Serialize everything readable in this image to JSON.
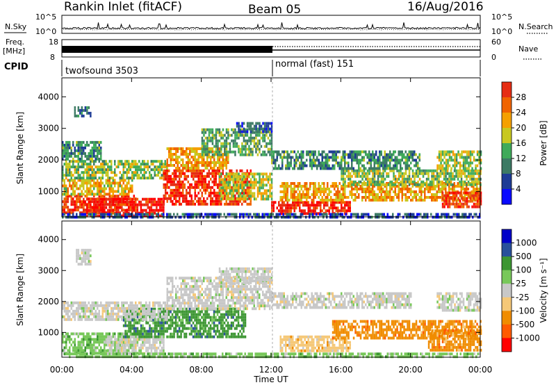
{
  "header": {
    "title": "Rankin Inlet (fitACF)",
    "beam": "Beam 05",
    "date": "16/Aug/2016"
  },
  "top_panels": {
    "nsky_label": "N.Sky",
    "nsky_ticks": [
      "10^5",
      "10^0"
    ],
    "nsearch_label": "N.Search",
    "nsearch_ticks": [
      "10^5",
      "10^0"
    ],
    "freq_label": "Freq.",
    "freq_unit": "[MHz]",
    "freq_ticks": [
      "18",
      "8"
    ],
    "nave_label": "Nave",
    "nave_ticks": [
      "60",
      "0"
    ],
    "cpid_label": "CPID",
    "cpid_segments": [
      {
        "name": "twofsound",
        "id": "3503",
        "start_hour": 0,
        "end_hour": 12
      },
      {
        "name": "normal (fast)",
        "id": "151",
        "start_hour": 12,
        "end_hour": 24
      }
    ]
  },
  "colors": {
    "power_scale": [
      "#0a0aff",
      "#1e3c96",
      "#3c7a64",
      "#3faa5a",
      "#c8c820",
      "#f5a000",
      "#f06400",
      "#e62d14",
      "#ff0000"
    ],
    "velocity_scale": [
      "#ff0000",
      "#ff5a00",
      "#f08c00",
      "#f5c878",
      "#c8c8c8",
      "#78c85a",
      "#3c9632",
      "#28509b",
      "#0000c8"
    ]
  },
  "chart_data": [
    {
      "type": "heatmap",
      "panel": "power",
      "xlabel": "Time UT",
      "ylabel": "Slant Range [km]",
      "xlim": [
        0,
        24
      ],
      "ylim": [
        200,
        4600
      ],
      "x_ticks": [
        "00:00",
        "04:00",
        "08:00",
        "12:00",
        "16:00",
        "20:00",
        "00:00"
      ],
      "y_ticks": [
        "1000",
        "2000",
        "3000",
        "4000"
      ],
      "colorbar_label": "Power [dB]",
      "colorbar_ticks": [
        "4",
        "8",
        "12",
        "16",
        "20",
        "24",
        "28"
      ],
      "colorbar_range": [
        0,
        32
      ],
      "regions": [
        {
          "x": [
            0.0,
            4.2
          ],
          "y": [
            300,
            900
          ],
          "value": 26
        },
        {
          "x": [
            1.2,
            5.8
          ],
          "y": [
            250,
            800
          ],
          "value": 29
        },
        {
          "x": [
            0.0,
            4.0
          ],
          "y": [
            900,
            1400
          ],
          "value": 18
        },
        {
          "x": [
            0.0,
            6.0
          ],
          "y": [
            1400,
            2000
          ],
          "value": 14
        },
        {
          "x": [
            0.0,
            2.2
          ],
          "y": [
            2000,
            2600
          ],
          "value": 10
        },
        {
          "x": [
            5.8,
            10.8
          ],
          "y": [
            600,
            1700
          ],
          "value": 27
        },
        {
          "x": [
            6.0,
            9.5
          ],
          "y": [
            1700,
            2400
          ],
          "value": 20
        },
        {
          "x": [
            8.0,
            12.0
          ],
          "y": [
            2200,
            3000
          ],
          "value": 12
        },
        {
          "x": [
            10.0,
            12.0
          ],
          "y": [
            2900,
            3200
          ],
          "value": 6
        },
        {
          "x": [
            9.0,
            12.0
          ],
          "y": [
            800,
            1600
          ],
          "value": 16
        },
        {
          "x": [
            12.0,
            16.5
          ],
          "y": [
            300,
            700
          ],
          "value": 28
        },
        {
          "x": [
            12.5,
            24.0
          ],
          "y": [
            700,
            1300
          ],
          "value": 20
        },
        {
          "x": [
            16.0,
            24.0
          ],
          "y": [
            1200,
            1700
          ],
          "value": 14
        },
        {
          "x": [
            12.0,
            20.5
          ],
          "y": [
            1700,
            2300
          ],
          "value": 10
        },
        {
          "x": [
            21.8,
            24.0
          ],
          "y": [
            500,
            1000
          ],
          "value": 26
        },
        {
          "x": [
            21.5,
            24.0
          ],
          "y": [
            1700,
            2300
          ],
          "value": 15
        },
        {
          "x": [
            0.7,
            1.6
          ],
          "y": [
            3400,
            3700
          ],
          "value": 8
        },
        {
          "x": [
            0.0,
            24.0
          ],
          "y": [
            200,
            320
          ],
          "value": 6
        }
      ]
    },
    {
      "type": "heatmap",
      "panel": "velocity",
      "xlabel": "Time UT",
      "ylabel": "Slant Range [km]",
      "xlim": [
        0,
        24
      ],
      "ylim": [
        200,
        4600
      ],
      "x_ticks": [
        "00:00",
        "04:00",
        "08:00",
        "12:00",
        "16:00",
        "20:00",
        "00:00"
      ],
      "y_ticks": [
        "1000",
        "2000",
        "3000",
        "4000"
      ],
      "colorbar_label": "Velocity [m s⁻¹]",
      "colorbar_ticks": [
        "1000",
        "500",
        "100",
        "25",
        "-25",
        "-100",
        "-500",
        "-1000"
      ],
      "regions": [
        {
          "x": [
            0.0,
            4.5
          ],
          "y": [
            300,
            1000
          ],
          "value": 60
        },
        {
          "x": [
            2.5,
            5.8
          ],
          "y": [
            300,
            900
          ],
          "value": 0
        },
        {
          "x": [
            3.5,
            10.5
          ],
          "y": [
            900,
            1800
          ],
          "value": 120
        },
        {
          "x": [
            0.0,
            6.0
          ],
          "y": [
            1400,
            2000
          ],
          "value": 0
        },
        {
          "x": [
            6.0,
            12.0
          ],
          "y": [
            1800,
            2800
          ],
          "value": 0
        },
        {
          "x": [
            9.0,
            12.0
          ],
          "y": [
            2600,
            3100
          ],
          "value": 0
        },
        {
          "x": [
            12.0,
            20.0
          ],
          "y": [
            1800,
            2300
          ],
          "value": 0
        },
        {
          "x": [
            12.5,
            16.5
          ],
          "y": [
            400,
            900
          ],
          "value": -60
        },
        {
          "x": [
            15.5,
            24.0
          ],
          "y": [
            800,
            1400
          ],
          "value": -300
        },
        {
          "x": [
            21.0,
            24.0
          ],
          "y": [
            400,
            1100
          ],
          "value": -400
        },
        {
          "x": [
            21.5,
            24.0
          ],
          "y": [
            1700,
            2300
          ],
          "value": 0
        },
        {
          "x": [
            0.8,
            1.6
          ],
          "y": [
            3200,
            3700
          ],
          "value": 0
        },
        {
          "x": [
            0.0,
            24.0
          ],
          "y": [
            200,
            350
          ],
          "value": 40
        }
      ]
    }
  ]
}
